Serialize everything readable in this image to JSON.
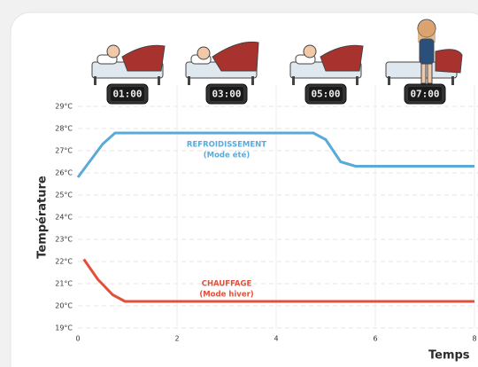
{
  "chart_data": {
    "type": "line",
    "y_label": "Température",
    "x_label": "Temps",
    "xlim": [
      0,
      8
    ],
    "xticks": [
      0,
      2,
      4,
      6,
      8
    ],
    "ylim": [
      19,
      29
    ],
    "yticks": [
      {
        "value": 19,
        "label": "19°C"
      },
      {
        "value": 20,
        "label": "20°C"
      },
      {
        "value": 21,
        "label": "21°C"
      },
      {
        "value": 22,
        "label": "22°C"
      },
      {
        "value": 23,
        "label": "23°C"
      },
      {
        "value": 24,
        "label": "24°C"
      },
      {
        "value": 25,
        "label": "25°C"
      },
      {
        "value": 26,
        "label": "26°C"
      },
      {
        "value": 27,
        "label": "27°C"
      },
      {
        "value": 28,
        "label": "28°C"
      },
      {
        "value": 29,
        "label": "29°C"
      }
    ],
    "grid": true,
    "clock_x": [
      1,
      3,
      5,
      7
    ],
    "clock_labels": [
      "01:00",
      "03:00",
      "05:00",
      "07:00"
    ],
    "series": [
      {
        "name": "REFROIDISSEMENT",
        "note": "(Mode été)",
        "color": "#5aaad9",
        "x": [
          0,
          0.2,
          0.5,
          0.75,
          4.75,
          5.0,
          5.3,
          5.6,
          8
        ],
        "values": [
          25.8,
          26.4,
          27.3,
          27.8,
          27.8,
          27.5,
          26.5,
          26.3,
          26.3
        ]
      },
      {
        "name": "CHAUFFAGE",
        "note": "(Mode hiver)",
        "color": "#e2503a",
        "x": [
          0.12,
          0.4,
          0.7,
          0.95,
          8
        ],
        "values": [
          22.1,
          21.2,
          20.5,
          20.2,
          20.2
        ]
      }
    ]
  }
}
